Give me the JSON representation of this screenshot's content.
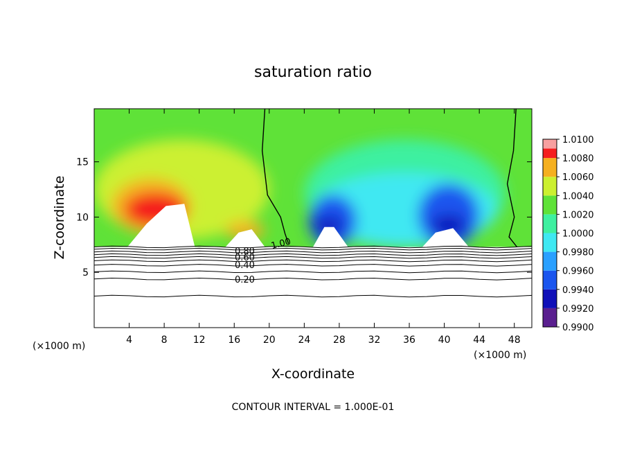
{
  "chart_data": {
    "type": "heatmap",
    "title": "saturation ratio",
    "xlabel": "X-coordinate",
    "ylabel": "Z-coordinate",
    "x_unit_left": "(×1000 m)",
    "x_unit_right": "(×1000 m)",
    "footer": "CONTOUR INTERVAL = 1.000E-01",
    "xlim": [
      0,
      50
    ],
    "ylim": [
      0,
      19.8
    ],
    "x_ticks": [
      4,
      8,
      12,
      16,
      20,
      24,
      28,
      32,
      36,
      40,
      44,
      48
    ],
    "x_tick_labels": [
      "4",
      "8",
      "12",
      "16",
      "20",
      "24",
      "28",
      "32",
      "36",
      "40",
      "44",
      "48"
    ],
    "y_ticks": [
      5,
      10,
      15
    ],
    "y_tick_labels": [
      "5",
      "10",
      "15"
    ],
    "colorbar": {
      "range": [
        0.99,
        1.01
      ],
      "ticks": [
        0.99,
        0.992,
        0.994,
        0.996,
        0.998,
        1.0,
        1.002,
        1.004,
        1.006,
        1.008,
        1.01
      ],
      "tick_labels": [
        "0.9900",
        "0.9920",
        "0.9940",
        "0.9960",
        "0.9980",
        "1.0000",
        "1.0020",
        "1.0040",
        "1.0060",
        "1.0080",
        "1.0100"
      ],
      "colors": [
        "#5a1f8f",
        "#1010b8",
        "#1a55ee",
        "#2aa0ff",
        "#3fe8f2",
        "#3ef0a0",
        "#5fe238",
        "#ccf030",
        "#f5b020",
        "#f51f1f",
        "#f8a0a0"
      ]
    },
    "contour_levels_labeled": [
      "1.00",
      "0.80",
      "0.60",
      "0.40",
      "0.20"
    ],
    "cloud_base_height": 7.3,
    "surface_contours": [
      {
        "level": 0.2,
        "z": 4.4
      },
      {
        "level": 0.3,
        "z": 5.05
      },
      {
        "level": 0.4,
        "z": 5.65
      },
      {
        "level": 0.5,
        "z": 6.05
      },
      {
        "level": 0.6,
        "z": 6.35
      },
      {
        "level": 0.7,
        "z": 6.6
      },
      {
        "level": 0.8,
        "z": 6.85
      },
      {
        "level": 0.9,
        "z": 7.1
      }
    ],
    "lowest_contour_z": 2.85,
    "unsaturated_bumps": [
      {
        "x": [
          3.8,
          6,
          8.2,
          10.3,
          11.5
        ],
        "z": [
          7.3,
          9.4,
          11.0,
          11.2,
          7.3
        ]
      },
      {
        "x": [
          15,
          16.5,
          18,
          19.5
        ],
        "z": [
          7.3,
          8.6,
          8.9,
          7.3
        ]
      },
      {
        "x": [
          25,
          26.3,
          27.4,
          29
        ],
        "z": [
          7.3,
          9.1,
          9.1,
          7.3
        ]
      },
      {
        "x": [
          37.5,
          39,
          41,
          42.8
        ],
        "z": [
          7.3,
          8.6,
          9.0,
          7.3
        ]
      }
    ],
    "saturation_boundary_contours": [
      {
        "level": "1.00",
        "x": [
          19.5,
          19.2,
          19.8,
          21.3,
          21.8,
          22.2
        ],
        "z": [
          19.8,
          16,
          12,
          10,
          8.5,
          7.6
        ]
      },
      {
        "level": "1.00",
        "x": [
          48.2,
          47.9,
          47.2,
          48.0,
          47.4,
          48.3
        ],
        "z": [
          19.8,
          16,
          13,
          10,
          8.2,
          7.3
        ]
      }
    ]
  }
}
